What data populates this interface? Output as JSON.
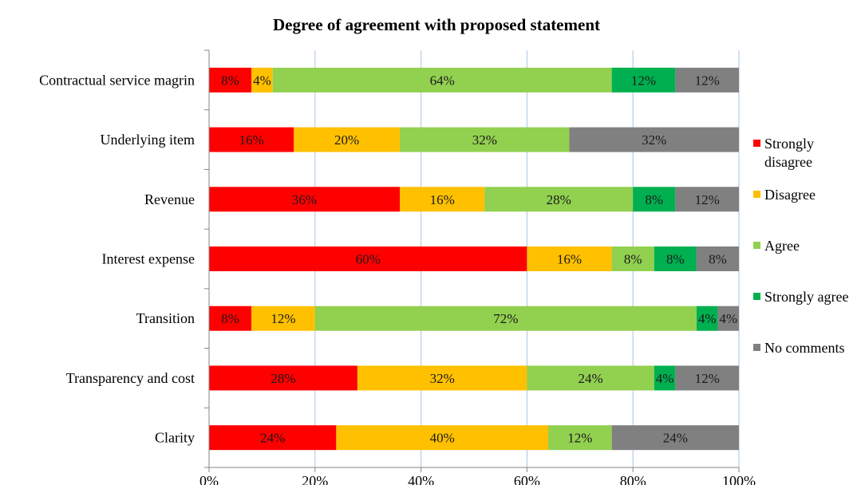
{
  "chart_data": {
    "type": "bar",
    "orientation": "horizontal",
    "stacked": "percent",
    "title": "Degree of agreement with proposed statement",
    "xlabel": "",
    "ylabel": "",
    "xlim": [
      0,
      100
    ],
    "x_ticks": [
      "0%",
      "20%",
      "40%",
      "60%",
      "80%",
      "100%"
    ],
    "x_tick_values": [
      0,
      20,
      40,
      60,
      80,
      100
    ],
    "grid": "vertical",
    "legend_position": "right",
    "categories": [
      "Contractual service magrin",
      "Underlying item",
      "Revenue",
      "Interest expense",
      "Transition",
      "Transparency and cost",
      "Clarity"
    ],
    "series": [
      {
        "name": "Strongly disagree",
        "legend_lines": [
          "Strongly",
          "disagree"
        ],
        "color": "#ff0000",
        "values": [
          8,
          16,
          36,
          60,
          8,
          28,
          24
        ]
      },
      {
        "name": "Disagree",
        "legend_lines": [
          "Disagree"
        ],
        "color": "#ffc000",
        "values": [
          4,
          20,
          16,
          16,
          12,
          32,
          40
        ]
      },
      {
        "name": "Agree",
        "legend_lines": [
          "Agree"
        ],
        "color": "#92d050",
        "values": [
          64,
          32,
          28,
          8,
          72,
          24,
          12
        ]
      },
      {
        "name": "Strongly agree",
        "legend_lines": [
          "Strongly agree"
        ],
        "color": "#00b050",
        "values": [
          12,
          0,
          8,
          8,
          4,
          4,
          0
        ]
      },
      {
        "name": "No comments",
        "legend_lines": [
          "No comments"
        ],
        "color": "#808080",
        "values": [
          12,
          32,
          12,
          8,
          4,
          12,
          24
        ]
      }
    ]
  }
}
